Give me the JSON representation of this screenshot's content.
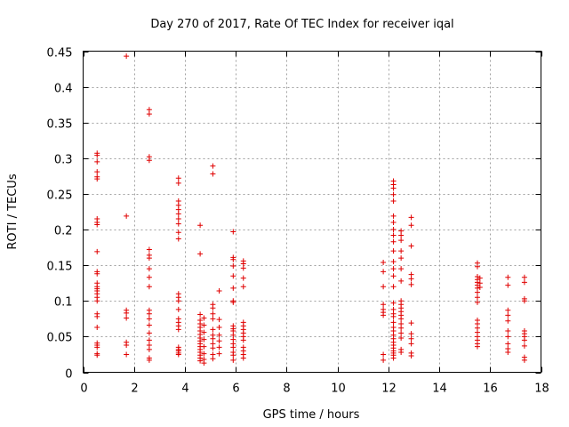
{
  "chart_data": {
    "type": "scatter",
    "title": "Day 270 of 2017, Rate Of TEC Index for receiver iqal",
    "xlabel": "GPS time / hours",
    "ylabel": "ROTI / TECUs",
    "xlim": [
      0,
      18
    ],
    "ylim": [
      0,
      0.45
    ],
    "xticks": [
      0,
      2,
      4,
      6,
      8,
      10,
      12,
      14,
      16,
      18
    ],
    "yticks": [
      0,
      0.05,
      0.1,
      0.15,
      0.2,
      0.25,
      0.3,
      0.35,
      0.4,
      0.45
    ],
    "xtick_labels": [
      "0",
      "2",
      "4",
      "6",
      "8",
      "10",
      "12",
      "14",
      "16",
      "18"
    ],
    "ytick_labels": [
      "0",
      "0.05",
      "0.1",
      "0.15",
      "0.2",
      "0.25",
      "0.3",
      "0.35",
      "0.4",
      "0.45"
    ],
    "grid": true,
    "marker": "+",
    "color": "#e00000",
    "points": [
      [
        0.55,
        0.307
      ],
      [
        0.55,
        0.304
      ],
      [
        0.55,
        0.295
      ],
      [
        0.55,
        0.281
      ],
      [
        0.55,
        0.274
      ],
      [
        0.55,
        0.271
      ],
      [
        0.55,
        0.215
      ],
      [
        0.55,
        0.21
      ],
      [
        0.55,
        0.207
      ],
      [
        0.55,
        0.169
      ],
      [
        0.55,
        0.141
      ],
      [
        0.55,
        0.138
      ],
      [
        0.55,
        0.125
      ],
      [
        0.55,
        0.12
      ],
      [
        0.55,
        0.117
      ],
      [
        0.55,
        0.114
      ],
      [
        0.55,
        0.11
      ],
      [
        0.55,
        0.105
      ],
      [
        0.55,
        0.1
      ],
      [
        0.55,
        0.082
      ],
      [
        0.55,
        0.078
      ],
      [
        0.55,
        0.063
      ],
      [
        0.55,
        0.041
      ],
      [
        0.55,
        0.038
      ],
      [
        0.55,
        0.035
      ],
      [
        0.55,
        0.026
      ],
      [
        0.55,
        0.024
      ],
      [
        1.7,
        0.443
      ],
      [
        1.7,
        0.219
      ],
      [
        1.7,
        0.087
      ],
      [
        1.7,
        0.083
      ],
      [
        1.7,
        0.076
      ],
      [
        1.7,
        0.042
      ],
      [
        1.7,
        0.038
      ],
      [
        1.7,
        0.025
      ],
      [
        2.6,
        0.368
      ],
      [
        2.6,
        0.362
      ],
      [
        2.6,
        0.302
      ],
      [
        2.6,
        0.297
      ],
      [
        2.6,
        0.172
      ],
      [
        2.6,
        0.164
      ],
      [
        2.6,
        0.16
      ],
      [
        2.6,
        0.145
      ],
      [
        2.6,
        0.133
      ],
      [
        2.6,
        0.12
      ],
      [
        2.6,
        0.087
      ],
      [
        2.6,
        0.082
      ],
      [
        2.6,
        0.075
      ],
      [
        2.6,
        0.066
      ],
      [
        2.6,
        0.055
      ],
      [
        2.6,
        0.045
      ],
      [
        2.6,
        0.038
      ],
      [
        2.6,
        0.032
      ],
      [
        2.6,
        0.02
      ],
      [
        2.6,
        0.017
      ],
      [
        3.75,
        0.272
      ],
      [
        3.75,
        0.265
      ],
      [
        3.75,
        0.24
      ],
      [
        3.75,
        0.234
      ],
      [
        3.75,
        0.228
      ],
      [
        3.75,
        0.222
      ],
      [
        3.75,
        0.215
      ],
      [
        3.75,
        0.208
      ],
      [
        3.75,
        0.196
      ],
      [
        3.75,
        0.187
      ],
      [
        3.75,
        0.11
      ],
      [
        3.75,
        0.105
      ],
      [
        3.75,
        0.1
      ],
      [
        3.75,
        0.088
      ],
      [
        3.75,
        0.075
      ],
      [
        3.75,
        0.07
      ],
      [
        3.75,
        0.065
      ],
      [
        3.75,
        0.06
      ],
      [
        3.75,
        0.035
      ],
      [
        3.75,
        0.032
      ],
      [
        3.75,
        0.03
      ],
      [
        3.75,
        0.027
      ],
      [
        3.75,
        0.025
      ],
      [
        4.6,
        0.206
      ],
      [
        4.6,
        0.166
      ],
      [
        4.6,
        0.081
      ],
      [
        4.6,
        0.073
      ],
      [
        4.6,
        0.068
      ],
      [
        4.6,
        0.063
      ],
      [
        4.6,
        0.058
      ],
      [
        4.6,
        0.053
      ],
      [
        4.6,
        0.048
      ],
      [
        4.6,
        0.044
      ],
      [
        4.6,
        0.04
      ],
      [
        4.6,
        0.036
      ],
      [
        4.6,
        0.032
      ],
      [
        4.6,
        0.028
      ],
      [
        4.6,
        0.024
      ],
      [
        4.6,
        0.02
      ],
      [
        4.6,
        0.016
      ],
      [
        4.75,
        0.076
      ],
      [
        4.75,
        0.066
      ],
      [
        4.75,
        0.056
      ],
      [
        4.75,
        0.046
      ],
      [
        4.75,
        0.036
      ],
      [
        4.75,
        0.026
      ],
      [
        4.75,
        0.018
      ],
      [
        4.75,
        0.013
      ],
      [
        5.1,
        0.289
      ],
      [
        5.1,
        0.278
      ],
      [
        5.1,
        0.095
      ],
      [
        5.1,
        0.09
      ],
      [
        5.1,
        0.082
      ],
      [
        5.1,
        0.075
      ],
      [
        5.1,
        0.06
      ],
      [
        5.1,
        0.052
      ],
      [
        5.1,
        0.047
      ],
      [
        5.1,
        0.04
      ],
      [
        5.1,
        0.034
      ],
      [
        5.1,
        0.025
      ],
      [
        5.1,
        0.019
      ],
      [
        5.35,
        0.114
      ],
      [
        5.35,
        0.074
      ],
      [
        5.35,
        0.063
      ],
      [
        5.35,
        0.052
      ],
      [
        5.35,
        0.044
      ],
      [
        5.35,
        0.035
      ],
      [
        5.35,
        0.026
      ],
      [
        5.9,
        0.197
      ],
      [
        5.9,
        0.161
      ],
      [
        5.9,
        0.158
      ],
      [
        5.9,
        0.149
      ],
      [
        5.9,
        0.135
      ],
      [
        5.9,
        0.118
      ],
      [
        5.9,
        0.1
      ],
      [
        5.9,
        0.098
      ],
      [
        5.9,
        0.065
      ],
      [
        5.9,
        0.061
      ],
      [
        5.9,
        0.058
      ],
      [
        5.9,
        0.052
      ],
      [
        5.9,
        0.046
      ],
      [
        5.9,
        0.04
      ],
      [
        5.9,
        0.035
      ],
      [
        5.9,
        0.028
      ],
      [
        5.9,
        0.024
      ],
      [
        5.9,
        0.017
      ],
      [
        6.3,
        0.156
      ],
      [
        6.3,
        0.152
      ],
      [
        6.3,
        0.146
      ],
      [
        6.3,
        0.132
      ],
      [
        6.3,
        0.12
      ],
      [
        6.3,
        0.07
      ],
      [
        6.3,
        0.065
      ],
      [
        6.3,
        0.06
      ],
      [
        6.3,
        0.055
      ],
      [
        6.3,
        0.05
      ],
      [
        6.3,
        0.045
      ],
      [
        6.3,
        0.035
      ],
      [
        6.3,
        0.03
      ],
      [
        6.3,
        0.025
      ],
      [
        6.3,
        0.02
      ],
      [
        11.8,
        0.154
      ],
      [
        11.8,
        0.141
      ],
      [
        11.8,
        0.12
      ],
      [
        11.8,
        0.095
      ],
      [
        11.8,
        0.088
      ],
      [
        11.8,
        0.084
      ],
      [
        11.8,
        0.08
      ],
      [
        11.8,
        0.025
      ],
      [
        11.8,
        0.017
      ],
      [
        12.2,
        0.268
      ],
      [
        12.2,
        0.263
      ],
      [
        12.2,
        0.258
      ],
      [
        12.2,
        0.249
      ],
      [
        12.2,
        0.24
      ],
      [
        12.2,
        0.219
      ],
      [
        12.2,
        0.21
      ],
      [
        12.2,
        0.2
      ],
      [
        12.2,
        0.192
      ],
      [
        12.2,
        0.183
      ],
      [
        12.2,
        0.17
      ],
      [
        12.2,
        0.155
      ],
      [
        12.2,
        0.145
      ],
      [
        12.2,
        0.135
      ],
      [
        12.2,
        0.12
      ],
      [
        12.2,
        0.097
      ],
      [
        12.2,
        0.088
      ],
      [
        12.2,
        0.082
      ],
      [
        12.2,
        0.078
      ],
      [
        12.2,
        0.07
      ],
      [
        12.2,
        0.063
      ],
      [
        12.2,
        0.058
      ],
      [
        12.2,
        0.052
      ],
      [
        12.2,
        0.047
      ],
      [
        12.2,
        0.042
      ],
      [
        12.2,
        0.038
      ],
      [
        12.2,
        0.034
      ],
      [
        12.2,
        0.03
      ],
      [
        12.2,
        0.027
      ],
      [
        12.2,
        0.024
      ],
      [
        12.2,
        0.02
      ],
      [
        12.5,
        0.198
      ],
      [
        12.5,
        0.192
      ],
      [
        12.5,
        0.185
      ],
      [
        12.5,
        0.17
      ],
      [
        12.5,
        0.16
      ],
      [
        12.5,
        0.145
      ],
      [
        12.5,
        0.128
      ],
      [
        12.5,
        0.1
      ],
      [
        12.5,
        0.095
      ],
      [
        12.5,
        0.09
      ],
      [
        12.5,
        0.085
      ],
      [
        12.5,
        0.08
      ],
      [
        12.5,
        0.075
      ],
      [
        12.5,
        0.068
      ],
      [
        12.5,
        0.062
      ],
      [
        12.5,
        0.055
      ],
      [
        12.5,
        0.048
      ],
      [
        12.5,
        0.032
      ],
      [
        12.5,
        0.028
      ],
      [
        12.9,
        0.217
      ],
      [
        12.9,
        0.206
      ],
      [
        12.9,
        0.177
      ],
      [
        12.9,
        0.137
      ],
      [
        12.9,
        0.131
      ],
      [
        12.9,
        0.123
      ],
      [
        12.9,
        0.069
      ],
      [
        12.9,
        0.054
      ],
      [
        12.9,
        0.047
      ],
      [
        12.9,
        0.04
      ],
      [
        12.9,
        0.027
      ],
      [
        12.9,
        0.023
      ],
      [
        15.5,
        0.153
      ],
      [
        15.5,
        0.148
      ],
      [
        15.5,
        0.134
      ],
      [
        15.5,
        0.13
      ],
      [
        15.5,
        0.126
      ],
      [
        15.5,
        0.122
      ],
      [
        15.5,
        0.118
      ],
      [
        15.5,
        0.112
      ],
      [
        15.5,
        0.105
      ],
      [
        15.5,
        0.098
      ],
      [
        15.5,
        0.073
      ],
      [
        15.5,
        0.068
      ],
      [
        15.5,
        0.062
      ],
      [
        15.5,
        0.056
      ],
      [
        15.5,
        0.05
      ],
      [
        15.5,
        0.045
      ],
      [
        15.5,
        0.04
      ],
      [
        15.5,
        0.036
      ],
      [
        15.6,
        0.132
      ],
      [
        15.6,
        0.125
      ],
      [
        15.6,
        0.119
      ],
      [
        16.7,
        0.133
      ],
      [
        16.7,
        0.122
      ],
      [
        16.7,
        0.087
      ],
      [
        16.7,
        0.08
      ],
      [
        16.7,
        0.072
      ],
      [
        16.7,
        0.058
      ],
      [
        16.7,
        0.05
      ],
      [
        16.7,
        0.04
      ],
      [
        16.7,
        0.033
      ],
      [
        16.7,
        0.028
      ],
      [
        17.35,
        0.133
      ],
      [
        17.35,
        0.126
      ],
      [
        17.35,
        0.103
      ],
      [
        17.35,
        0.1
      ],
      [
        17.35,
        0.058
      ],
      [
        17.35,
        0.054
      ],
      [
        17.35,
        0.05
      ],
      [
        17.35,
        0.045
      ],
      [
        17.35,
        0.037
      ],
      [
        17.35,
        0.021
      ],
      [
        17.35,
        0.017
      ]
    ]
  }
}
